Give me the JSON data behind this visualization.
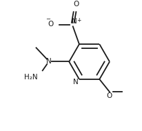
{
  "bg_color": "#ffffff",
  "line_color": "#1a1a1a",
  "text_color": "#1a1a1a",
  "lw": 1.3,
  "fs": 7.5,
  "figsize": [
    2.06,
    1.9
  ],
  "dpi": 100,
  "xlim": [
    0,
    206
  ],
  "ylim": [
    0,
    190
  ]
}
